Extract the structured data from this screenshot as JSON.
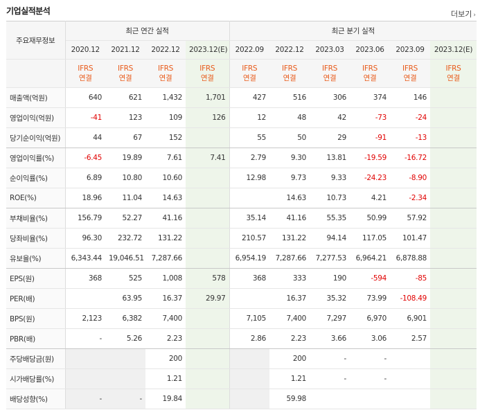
{
  "header": {
    "title": "기업실적분석",
    "more_label": "더보기",
    "more_arrow": "›"
  },
  "table": {
    "label_header": "주요재무정보",
    "annual_group": "최근 연간 실적",
    "quarter_group": "최근 분기 실적",
    "annual_periods": [
      "2020.12",
      "2021.12",
      "2022.12",
      "2023.12(E)"
    ],
    "quarter_periods": [
      "2022.09",
      "2022.12",
      "2023.03",
      "2023.06",
      "2023.09",
      "2023.12(E)"
    ],
    "ifrs_line1": "IFRS",
    "ifrs_line2": "연결",
    "rows": [
      {
        "label": "매출액(억원)",
        "annual": [
          "640",
          "621",
          "1,432",
          "1,701"
        ],
        "quarter": [
          "427",
          "516",
          "306",
          "374",
          "146",
          ""
        ]
      },
      {
        "label": "영업이익(억원)",
        "annual": [
          "-41",
          "123",
          "109",
          "126"
        ],
        "quarter": [
          "12",
          "48",
          "42",
          "-73",
          "-24",
          ""
        ]
      },
      {
        "label": "당기순이익(억원)",
        "annual": [
          "44",
          "67",
          "152",
          ""
        ],
        "quarter": [
          "55",
          "50",
          "29",
          "-91",
          "-13",
          ""
        ]
      },
      {
        "label": "영업이익률(%)",
        "annual": [
          "-6.45",
          "19.89",
          "7.61",
          "7.41"
        ],
        "quarter": [
          "2.79",
          "9.30",
          "13.81",
          "-19.59",
          "-16.72",
          ""
        ]
      },
      {
        "label": "순이익률(%)",
        "annual": [
          "6.89",
          "10.80",
          "10.60",
          ""
        ],
        "quarter": [
          "12.98",
          "9.73",
          "9.33",
          "-24.23",
          "-8.90",
          ""
        ]
      },
      {
        "label": "ROE(%)",
        "annual": [
          "18.96",
          "11.04",
          "14.63",
          ""
        ],
        "quarter": [
          "",
          "14.63",
          "10.73",
          "4.21",
          "-2.34",
          ""
        ]
      },
      {
        "label": "부채비율(%)",
        "annual": [
          "156.79",
          "52.27",
          "41.16",
          ""
        ],
        "quarter": [
          "35.14",
          "41.16",
          "55.35",
          "50.99",
          "57.92",
          ""
        ]
      },
      {
        "label": "당좌비율(%)",
        "annual": [
          "96.30",
          "232.72",
          "131.22",
          ""
        ],
        "quarter": [
          "210.57",
          "131.22",
          "94.14",
          "117.05",
          "101.47",
          ""
        ]
      },
      {
        "label": "유보율(%)",
        "annual": [
          "6,343.44",
          "19,046.51",
          "7,287.66",
          ""
        ],
        "quarter": [
          "6,954.19",
          "7,287.66",
          "7,277.53",
          "6,964.21",
          "6,878.88",
          ""
        ]
      },
      {
        "label": "EPS(원)",
        "annual": [
          "368",
          "525",
          "1,008",
          "578"
        ],
        "quarter": [
          "368",
          "333",
          "190",
          "-594",
          "-85",
          ""
        ]
      },
      {
        "label": "PER(배)",
        "annual": [
          "",
          "63.95",
          "16.37",
          "29.97"
        ],
        "quarter": [
          "",
          "16.37",
          "35.32",
          "73.99",
          "-108.49",
          ""
        ]
      },
      {
        "label": "BPS(원)",
        "annual": [
          "2,123",
          "6,382",
          "7,400",
          ""
        ],
        "quarter": [
          "7,105",
          "7,400",
          "7,297",
          "6,970",
          "6,901",
          ""
        ]
      },
      {
        "label": "PBR(배)",
        "annual": [
          "-",
          "5.26",
          "2.23",
          ""
        ],
        "quarter": [
          "2.86",
          "2.23",
          "3.66",
          "3.06",
          "2.57",
          ""
        ]
      },
      {
        "label": "주당배당금(원)",
        "annual": [
          "",
          "",
          "200",
          ""
        ],
        "quarter": [
          "",
          "200",
          "-",
          "-",
          "",
          ""
        ]
      },
      {
        "label": "시가배당률(%)",
        "annual": [
          "",
          "",
          "1.21",
          ""
        ],
        "quarter": [
          "",
          "1.21",
          "-",
          "-",
          "",
          ""
        ]
      },
      {
        "label": "배당성향(%)",
        "annual": [
          "-",
          "-",
          "19.84",
          ""
        ],
        "quarter": [
          "",
          "59.98",
          "",
          "",
          "",
          ""
        ]
      }
    ]
  },
  "colors": {
    "negative": "#e10000",
    "ifrs": "#e85a1a",
    "estimate_bg": "#eef5ea"
  }
}
